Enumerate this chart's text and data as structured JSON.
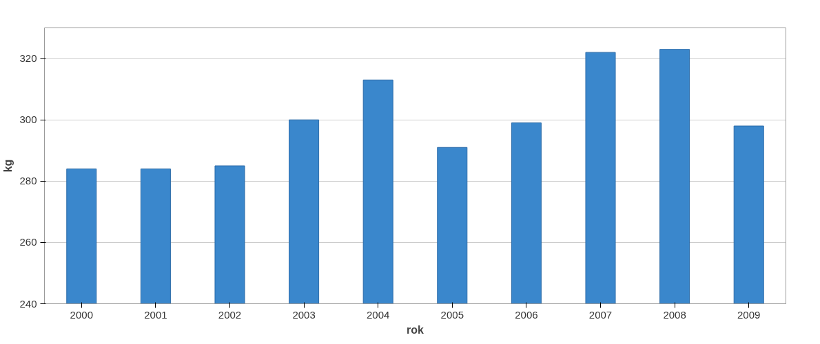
{
  "chart_data": {
    "type": "bar",
    "xlabel": "rok",
    "ylabel": "kg",
    "categories": [
      "2000",
      "2001",
      "2002",
      "2003",
      "2004",
      "2005",
      "2006",
      "2007",
      "2008",
      "2009"
    ],
    "values": [
      284,
      284,
      285,
      300,
      313,
      291,
      299,
      322,
      323,
      298
    ],
    "color": "#3a87cc",
    "ylim": [
      240,
      330
    ],
    "yticks": [
      240,
      260,
      280,
      300,
      320
    ],
    "grid": "y"
  }
}
